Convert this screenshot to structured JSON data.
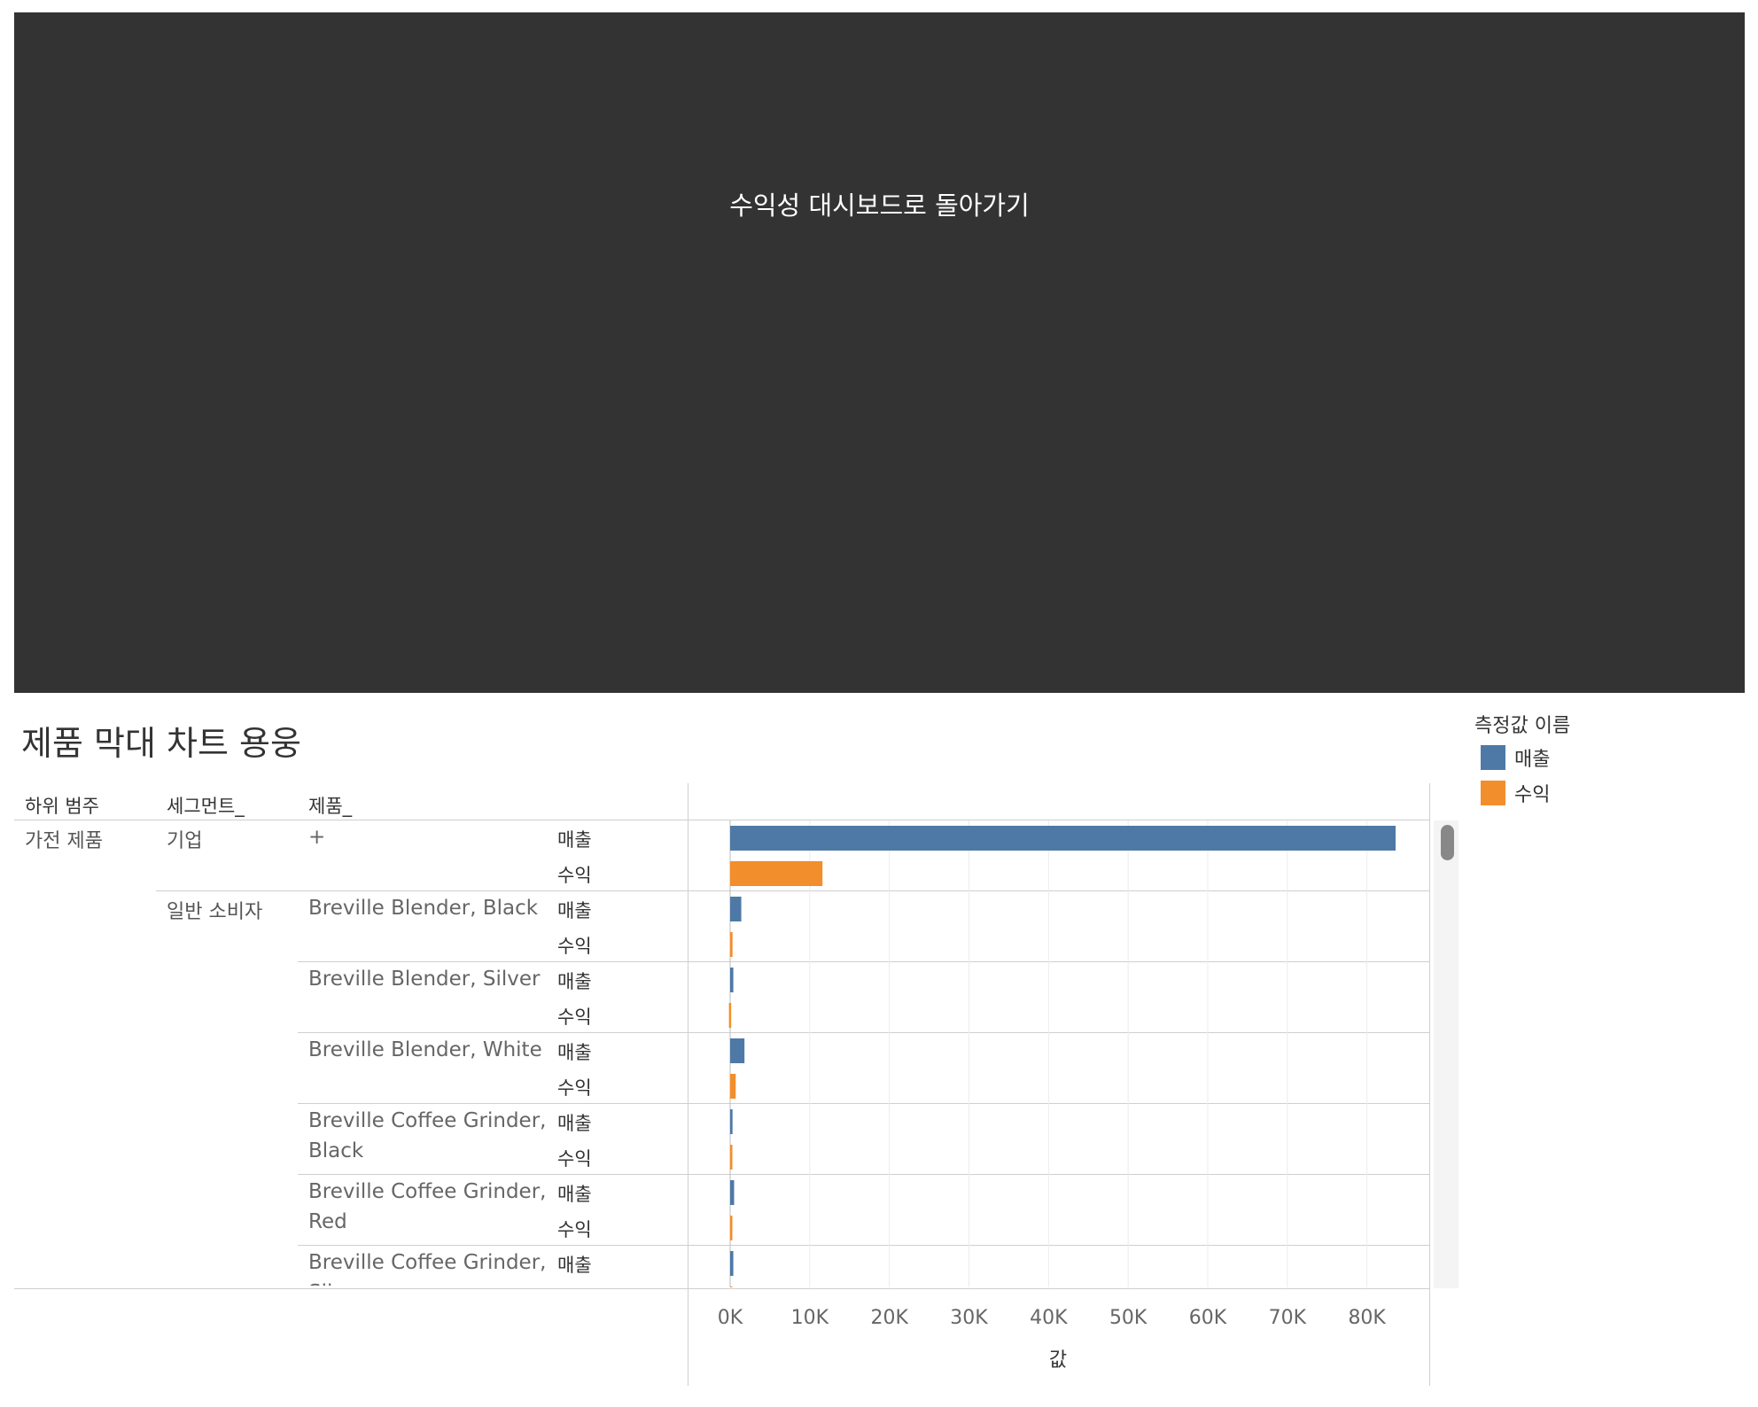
{
  "banner": {
    "label": "수익성 대시보드로 돌아가기"
  },
  "title": "제품 막대 차트 용웅",
  "legend": {
    "title": "측정값 이름",
    "items": [
      {
        "label": "매출",
        "color": "#4e79a7"
      },
      {
        "label": "수익",
        "color": "#f28e2b"
      }
    ]
  },
  "table_headers": {
    "subcategory": "하위 범주",
    "segment": "세그먼트_",
    "product": "제품_"
  },
  "chart_data": {
    "type": "bar",
    "orientation": "horizontal",
    "xlabel": "값",
    "xlim": [
      0,
      88000
    ],
    "x_ticks": [
      "0K",
      "10K",
      "20K",
      "30K",
      "40K",
      "50K",
      "60K",
      "70K",
      "80K"
    ],
    "grid": true,
    "legend_position": "top-right",
    "subcategory": "가전 제품",
    "measures": [
      "매출",
      "수익"
    ],
    "rows": [
      {
        "segment": "기업",
        "product": "+",
        "sales": 83600,
        "profit": 11600
      },
      {
        "segment": "일반 소비자",
        "product": "Breville Blender, Black",
        "sales": 1400,
        "profit": 300
      },
      {
        "segment": "",
        "product": "Breville Blender, Silver",
        "sales": 400,
        "profit": -150
      },
      {
        "segment": "",
        "product": "Breville Blender, White",
        "sales": 1800,
        "profit": 700
      },
      {
        "segment": "",
        "product": "Breville Coffee Grinder, Black",
        "sales": 300,
        "profit": 200
      },
      {
        "segment": "",
        "product": "Breville Coffee Grinder, Red",
        "sales": 500,
        "profit": 200
      },
      {
        "segment": "",
        "product": "Breville Coffee Grinder, Silver",
        "sales": 400,
        "profit": 150
      }
    ]
  }
}
